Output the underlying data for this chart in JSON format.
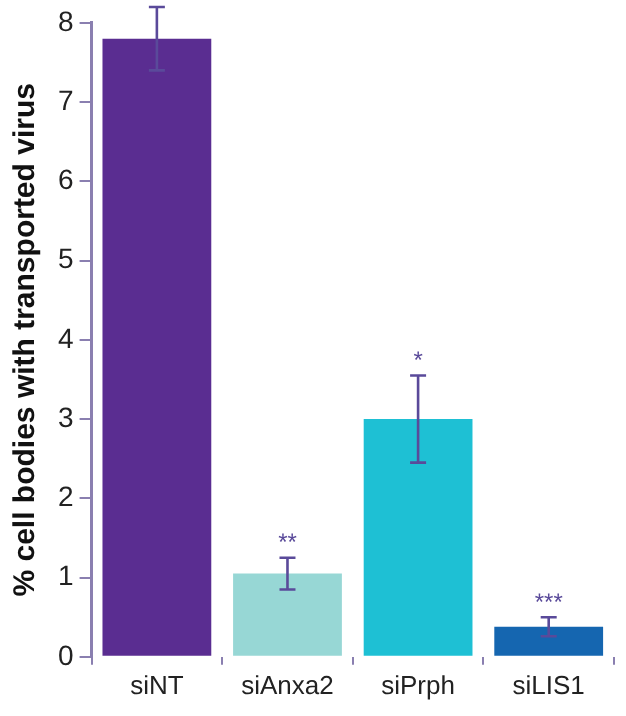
{
  "chart_data": {
    "type": "bar",
    "ylabel": "% cell bodies with transported virus",
    "categories": [
      "siNT",
      "siAnxa2",
      "siPrph",
      "siLIS1"
    ],
    "values": [
      7.8,
      1.05,
      3.0,
      0.38
    ],
    "colors": [
      "#5a2d91",
      "#97d7d5",
      "#1ec0d4",
      "#1566b0"
    ],
    "errors": [
      0.4,
      0.2,
      0.55,
      0.12
    ],
    "ylim": [
      0,
      8
    ],
    "yticks": [
      0,
      1,
      2,
      3,
      4,
      5,
      6,
      7,
      8
    ],
    "grid": false,
    "legend": false,
    "annotations": [
      {
        "text": "**",
        "x": "siAnxa2",
        "y": 1.25
      },
      {
        "text": "*",
        "x": "siPrph",
        "y": 3.55
      },
      {
        "text": "***",
        "x": "siLIS1",
        "y": 0.5
      }
    ]
  }
}
